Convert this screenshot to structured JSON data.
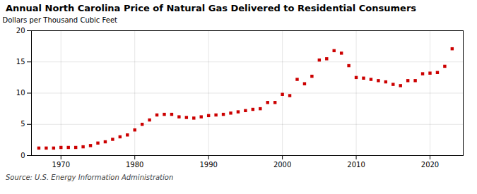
{
  "chart_data": {
    "type": "scatter",
    "title": "Annual North Carolina Price of Natural Gas Delivered to Residential Consumers",
    "ylabel": "Dollars per Thousand Cubic Feet",
    "source": "Source: U.S. Energy Information Administration",
    "x": [
      1967,
      1968,
      1969,
      1970,
      1971,
      1972,
      1973,
      1974,
      1975,
      1976,
      1977,
      1978,
      1979,
      1980,
      1981,
      1982,
      1983,
      1984,
      1985,
      1986,
      1987,
      1988,
      1989,
      1990,
      1991,
      1992,
      1993,
      1994,
      1995,
      1996,
      1997,
      1998,
      1999,
      2000,
      2001,
      2002,
      2003,
      2004,
      2005,
      2006,
      2007,
      2008,
      2009,
      2010,
      2011,
      2012,
      2013,
      2014,
      2015,
      2016,
      2017,
      2018,
      2019,
      2020,
      2021,
      2022,
      2023
    ],
    "values": [
      1.2,
      1.2,
      1.2,
      1.3,
      1.3,
      1.3,
      1.4,
      1.6,
      2.0,
      2.2,
      2.6,
      3.0,
      3.3,
      4.1,
      5.0,
      5.7,
      6.5,
      6.6,
      6.6,
      6.2,
      6.1,
      6.0,
      6.2,
      6.4,
      6.5,
      6.6,
      6.8,
      7.0,
      7.2,
      7.4,
      7.5,
      8.5,
      8.5,
      9.8,
      9.6,
      12.2,
      11.5,
      12.7,
      15.3,
      15.5,
      16.8,
      16.4,
      14.4,
      12.5,
      12.4,
      12.2,
      12.0,
      11.8,
      11.4,
      11.2,
      12.0,
      12.0,
      13.1,
      13.2,
      13.3,
      14.3,
      17.1
    ],
    "color": "#cc0000",
    "marker": "square",
    "xlim": [
      1966,
      2024.5
    ],
    "ylim": [
      0,
      20
    ],
    "xticks": [
      1970,
      1980,
      1990,
      2000,
      2010,
      2020
    ],
    "yticks": [
      0,
      5,
      10,
      15,
      20
    ],
    "grid": true
  }
}
